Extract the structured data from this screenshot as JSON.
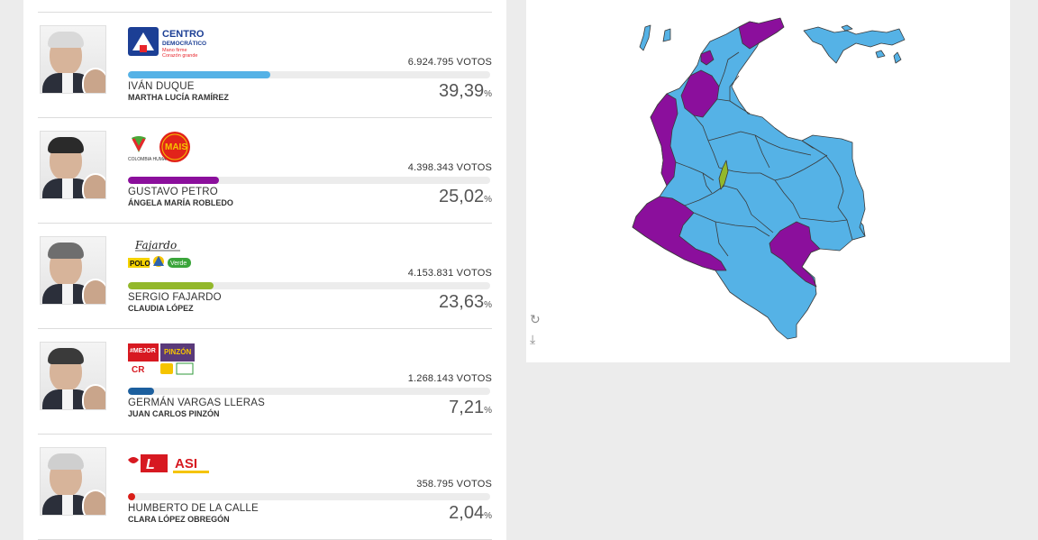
{
  "colors": {
    "duque": "#55b2e6",
    "petro": "#8b0f9c",
    "fajardo": "#93b82b",
    "vargas": "#1c5f9e",
    "calle": "#d91e18",
    "border": "#3a3a3a"
  },
  "candidates": [
    {
      "name": "IVÁN DUQUE",
      "vp": "MARTHA LUCÍA RAMÍREZ",
      "votes": "6.924.795 VOTOS",
      "pct": "39,39",
      "share": 0.3939,
      "color": "#55b2e6",
      "hair": "#d9d9d9"
    },
    {
      "name": "GUSTAVO PETRO",
      "vp": "ÁNGELA MARÍA ROBLEDO",
      "votes": "4.398.343 VOTOS",
      "pct": "25,02",
      "share": 0.2502,
      "color": "#8b0f9c",
      "hair": "#2a2a2a"
    },
    {
      "name": "SERGIO FAJARDO",
      "vp": "CLAUDIA LÓPEZ",
      "votes": "4.153.831 VOTOS",
      "pct": "23,63",
      "share": 0.2363,
      "color": "#93b82b",
      "hair": "#6e6e6e"
    },
    {
      "name": "GERMÁN VARGAS LLERAS",
      "vp": "JUAN CARLOS PINZÓN",
      "votes": "1.268.143 VOTOS",
      "pct": "7,21",
      "share": 0.0721,
      "color": "#1c5f9e",
      "hair": "#3a3a3a"
    },
    {
      "name": "HUMBERTO DE LA CALLE",
      "vp": "CLARA LÓPEZ OBREGÓN",
      "votes": "358.795 VOTOS",
      "pct": "2,04",
      "share": 0.0204,
      "color": "#d91e18",
      "hair": "#cfcfcf"
    }
  ],
  "logos": {
    "duque": {
      "line1": "CENTRO",
      "line2": "DEMOCRÁTICO",
      "line3": "Mano firme",
      "line4": "Corazón grande"
    },
    "petro": {
      "text1": "COLOMBIA HUMANA",
      "text2": "MAIS"
    },
    "fajardo": {
      "signature": "Fajardo",
      "text1": "POLO",
      "text2": "Verde"
    },
    "vargas": {
      "text1": "#MEJOR",
      "text2": "PINZÓN",
      "text3": "CR"
    },
    "calle": {
      "text1": "L",
      "text2": "ASI"
    }
  },
  "map_icons": {
    "refresh": "refresh-icon",
    "download": "download-icon"
  },
  "pct_suffix": "%"
}
